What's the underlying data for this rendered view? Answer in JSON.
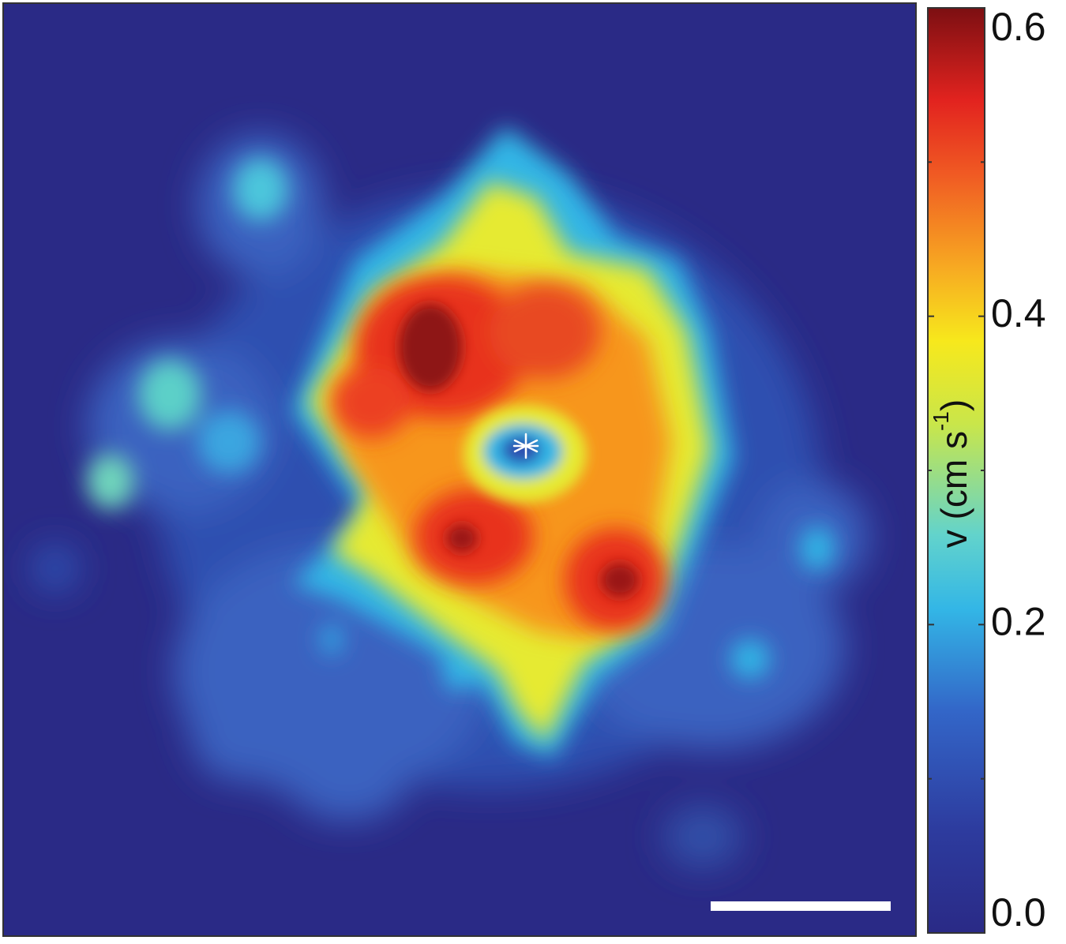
{
  "chart_data": {
    "type": "heatmap",
    "title": "",
    "xlabel": "",
    "ylabel": "",
    "colorbar": {
      "label_main": "v (cm s",
      "label_sup": "-1",
      "label_close": ")",
      "min": 0.0,
      "max": 0.6,
      "ticks": [
        0.0,
        0.2,
        0.4,
        0.6
      ],
      "tick_labels": [
        "0.0",
        "0.2",
        "0.4",
        "0.6"
      ],
      "minor_ticks": [
        0.1,
        0.3,
        0.5
      ],
      "colormap": "jet"
    },
    "background_value": 0.06,
    "marker": {
      "symbol": "*",
      "color": "#ffffff",
      "description": "center point"
    },
    "scale_bar": {
      "color": "#ffffff",
      "label": ""
    },
    "regions": [
      {
        "name": "peak-upper-left",
        "value": 0.6
      },
      {
        "name": "peak-lower-left",
        "value": 0.58
      },
      {
        "name": "peak-lower-right",
        "value": 0.58
      },
      {
        "name": "ring-around-center",
        "value": 0.5
      },
      {
        "name": "center-hole",
        "value": 0.18
      }
    ]
  },
  "colors": {
    "frame": "#333333",
    "background": "#2a2a86"
  }
}
